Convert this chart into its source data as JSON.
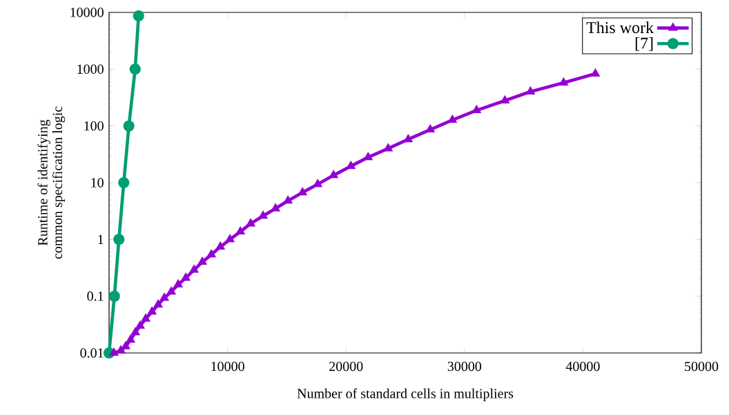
{
  "chart_data": {
    "type": "line",
    "xlabel": "Number of standard cells in multipliers",
    "ylabel": "Runtime of identifying\ncommon specification logic",
    "xlim": [
      0,
      50000
    ],
    "xticks": [
      10000,
      20000,
      30000,
      40000,
      50000
    ],
    "ylim": [
      0.01,
      10000
    ],
    "yticks": [
      0.01,
      0.1,
      1,
      10,
      100,
      1000,
      10000
    ],
    "log": "y",
    "grid": false,
    "legend": "top right",
    "series": [
      {
        "name": "This work",
        "color": "#9400d3",
        "marker": "triangle",
        "x": [
          410,
          990,
          1400,
          1810,
          2220,
          2620,
          3090,
          3620,
          4140,
          4660,
          5250,
          5830,
          6470,
          7170,
          7870,
          8630,
          9390,
          10200,
          11080,
          11950,
          13000,
          14050,
          15100,
          16330,
          17610,
          18950,
          20410,
          21870,
          23560,
          25250,
          27110,
          28980,
          31020,
          33410,
          35570,
          38370,
          41050
        ],
        "values": [
          0.01,
          0.011,
          0.013,
          0.017,
          0.023,
          0.03,
          0.04,
          0.053,
          0.071,
          0.093,
          0.12,
          0.16,
          0.21,
          0.29,
          0.4,
          0.54,
          0.74,
          1.0,
          1.37,
          1.9,
          2.6,
          3.5,
          4.8,
          6.7,
          9.4,
          13.5,
          19.5,
          28,
          40,
          58,
          86,
          127,
          188,
          279,
          401,
          577,
          830
        ]
      },
      {
        "name": "[7]",
        "color": "#009e73",
        "marker": "circle",
        "x": [
          0,
          450,
          830,
          1240,
          1670,
          2200,
          2490
        ],
        "values": [
          0.01,
          0.1,
          1,
          10,
          100,
          1000,
          8700
        ]
      }
    ]
  }
}
